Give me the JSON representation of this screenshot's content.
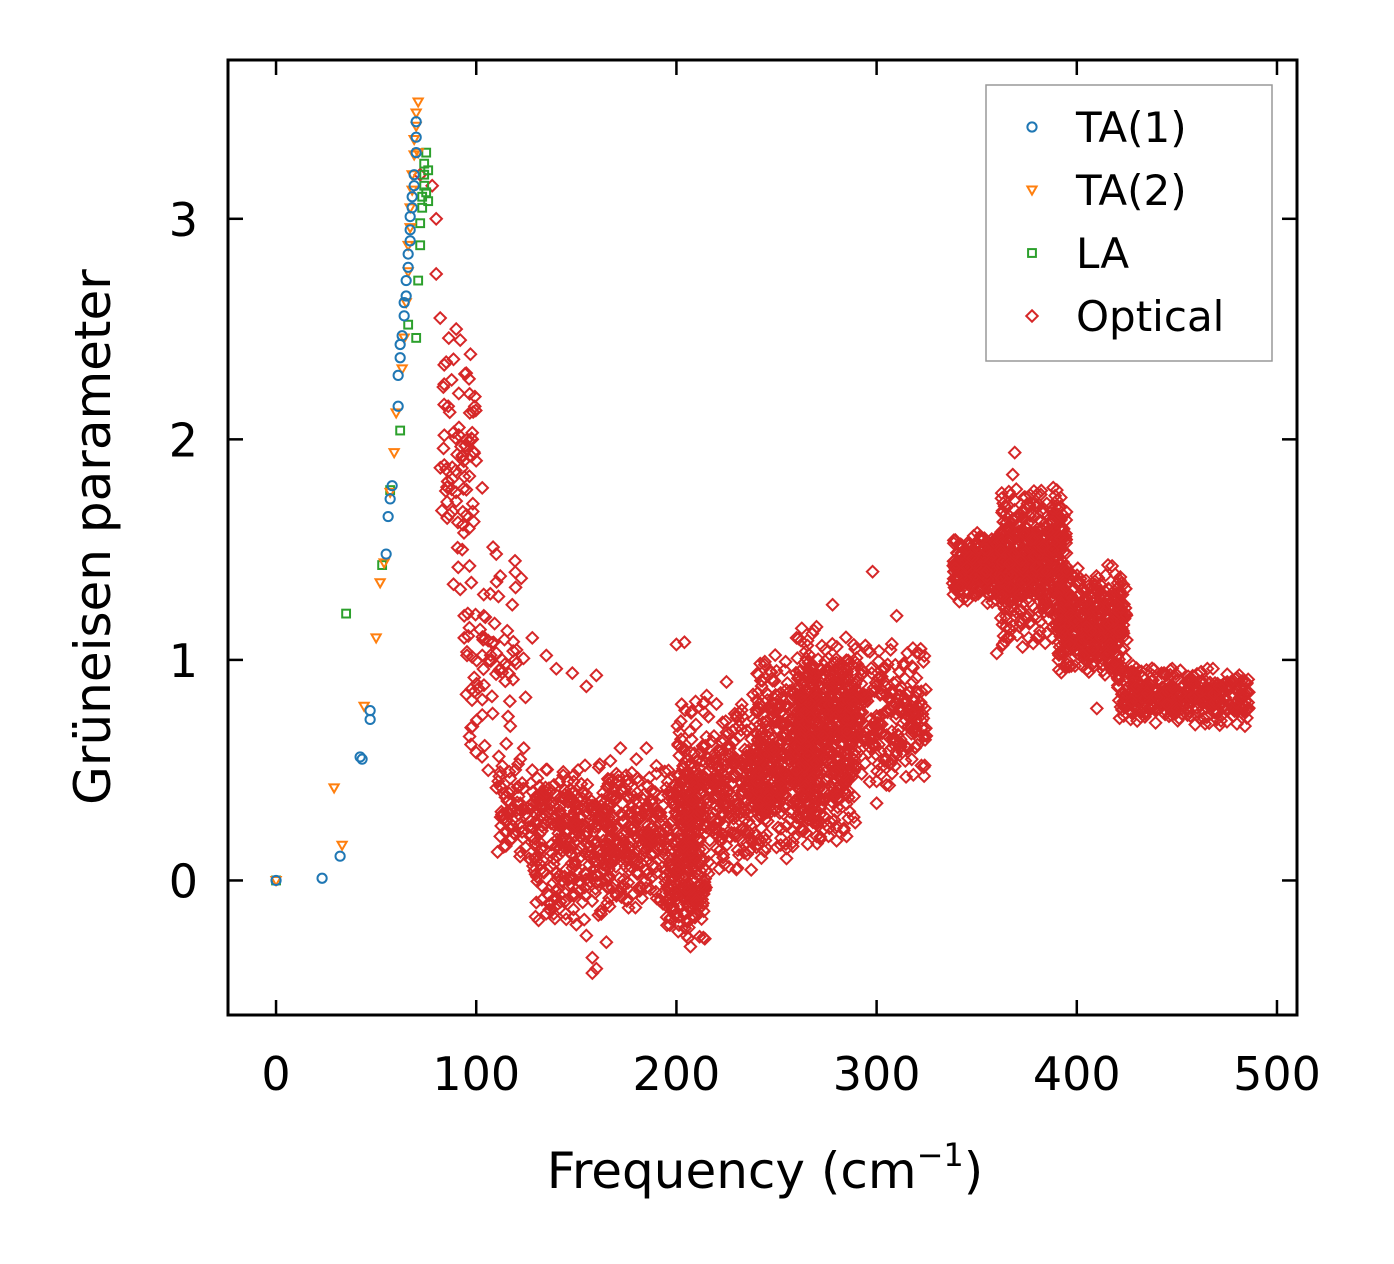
{
  "chart_data": {
    "type": "scatter",
    "title": "",
    "xlabel": "Frequency (cm",
    "xlabel_sup": "−1",
    "xlabel_suffix": ")",
    "ylabel": "Grüneisen parameter",
    "xlim": [
      -24,
      510
    ],
    "ylim": [
      -0.61,
      3.72
    ],
    "xticks": [
      0,
      100,
      200,
      300,
      400,
      500
    ],
    "xtick_labels": [
      "0",
      "100",
      "200",
      "300",
      "400",
      "500"
    ],
    "yticks": [
      0,
      1,
      2,
      3
    ],
    "ytick_labels": [
      "0",
      "1",
      "2",
      "3"
    ],
    "legend_position": "top-right",
    "series": [
      {
        "name": "TA(1)",
        "marker": "circle",
        "color": "#1f77b4",
        "points": [
          [
            0,
            0
          ],
          [
            23,
            0.01
          ],
          [
            32,
            0.11
          ],
          [
            42,
            0.56
          ],
          [
            43,
            0.55
          ],
          [
            47,
            0.77
          ],
          [
            47,
            0.73
          ],
          [
            55,
            1.48
          ],
          [
            56,
            1.65
          ],
          [
            57,
            1.73
          ],
          [
            58,
            1.79
          ],
          [
            61,
            2.15
          ],
          [
            61,
            2.29
          ],
          [
            62,
            2.37
          ],
          [
            62,
            2.43
          ],
          [
            63,
            2.47
          ],
          [
            64,
            2.56
          ],
          [
            64,
            2.62
          ],
          [
            65,
            2.65
          ],
          [
            65,
            2.72
          ],
          [
            66,
            2.78
          ],
          [
            66,
            2.84
          ],
          [
            67,
            2.9
          ],
          [
            67,
            2.95
          ],
          [
            67,
            3.01
          ],
          [
            68,
            3.05
          ],
          [
            68,
            3.1
          ],
          [
            69,
            3.15
          ],
          [
            69,
            3.2
          ],
          [
            70,
            3.3
          ],
          [
            70,
            3.37
          ],
          [
            70,
            3.44
          ]
        ]
      },
      {
        "name": "TA(2)",
        "marker": "triangle-down",
        "color": "#ff7f0e",
        "points": [
          [
            0,
            0
          ],
          [
            29,
            0.42
          ],
          [
            33,
            0.16
          ],
          [
            44,
            0.79
          ],
          [
            50,
            1.1
          ],
          [
            52,
            1.35
          ],
          [
            54,
            1.44
          ],
          [
            57,
            1.76
          ],
          [
            59,
            1.94
          ],
          [
            60,
            2.12
          ],
          [
            63,
            2.32
          ],
          [
            64,
            2.46
          ],
          [
            65,
            2.62
          ],
          [
            66,
            2.76
          ],
          [
            66,
            2.88
          ],
          [
            67,
            2.96
          ],
          [
            67,
            3.05
          ],
          [
            68,
            3.13
          ],
          [
            68,
            3.2
          ],
          [
            69,
            3.29
          ],
          [
            69,
            3.36
          ],
          [
            70,
            3.42
          ],
          [
            70,
            3.48
          ],
          [
            71,
            3.53
          ],
          [
            71,
            3.3
          ]
        ]
      },
      {
        "name": "LA",
        "marker": "square",
        "color": "#2ca02c",
        "points": [
          [
            0,
            0
          ],
          [
            35,
            1.21
          ],
          [
            53,
            1.43
          ],
          [
            57,
            1.77
          ],
          [
            62,
            2.04
          ],
          [
            66,
            2.52
          ],
          [
            70,
            2.46
          ],
          [
            71,
            2.72
          ],
          [
            72,
            2.88
          ],
          [
            72,
            2.98
          ],
          [
            73,
            3.05
          ],
          [
            73,
            3.1
          ],
          [
            74,
            3.15
          ],
          [
            74,
            3.2
          ],
          [
            74,
            3.25
          ],
          [
            75,
            3.3
          ],
          [
            75,
            3.12
          ],
          [
            76,
            3.22
          ],
          [
            76,
            3.08
          ]
        ]
      },
      {
        "name": "Optical",
        "marker": "diamond",
        "color": "#d62728",
        "points": [
          [
            72,
            3.2
          ],
          [
            78,
            3.15
          ],
          [
            80,
            2.75
          ],
          [
            80,
            3.0
          ],
          [
            82,
            2.55
          ],
          [
            85,
            2.35
          ],
          [
            84,
            2.25
          ],
          [
            86,
            2.15
          ],
          [
            90,
            2.5
          ],
          [
            92,
            2.45
          ],
          [
            95,
            2.3
          ],
          [
            88,
            1.82
          ],
          [
            90,
            1.72
          ],
          [
            93,
            1.5
          ],
          [
            91,
            1.42
          ],
          [
            92,
            1.32
          ],
          [
            94,
            1.2
          ],
          [
            94,
            1.1
          ],
          [
            98,
            2.03
          ],
          [
            98,
            2.0
          ],
          [
            103,
            1.78
          ],
          [
            103,
            1.02
          ],
          [
            99,
            0.92
          ],
          [
            103,
            0.82
          ],
          [
            103,
            0.75
          ],
          [
            100,
            0.58
          ],
          [
            110,
            1.48
          ],
          [
            112,
            1.38
          ],
          [
            113,
            1.0
          ],
          [
            118,
            1.25
          ],
          [
            117,
            0.7
          ],
          [
            115,
            0.62
          ],
          [
            111,
            0.45
          ],
          [
            122,
            0.35
          ],
          [
            128,
            1.1
          ],
          [
            135,
            1.02
          ],
          [
            140,
            0.96
          ],
          [
            148,
            0.94
          ],
          [
            155,
            0.88
          ],
          [
            160,
            0.93
          ],
          [
            106,
            0.5
          ],
          [
            112,
            0.2
          ],
          [
            118,
            0.25
          ],
          [
            125,
            0.3
          ],
          [
            130,
            -0.1
          ],
          [
            132,
            0.12
          ],
          [
            135,
            -0.15
          ],
          [
            140,
            -0.05
          ],
          [
            145,
            0.05
          ],
          [
            150,
            -0.2
          ],
          [
            155,
            -0.25
          ],
          [
            158,
            -0.35
          ],
          [
            160,
            -0.4
          ],
          [
            158,
            -0.42
          ],
          [
            165,
            -0.28
          ],
          [
            168,
            0.45
          ],
          [
            172,
            0.6
          ],
          [
            175,
            0.45
          ],
          [
            180,
            0.55
          ],
          [
            185,
            0.6
          ],
          [
            190,
            0.52
          ],
          [
            195,
            0.42
          ],
          [
            200,
            1.07
          ],
          [
            204,
            1.08
          ],
          [
            205,
            -0.25
          ],
          [
            207,
            -0.3
          ],
          [
            210,
            -0.1
          ],
          [
            215,
            0.65
          ],
          [
            220,
            0.8
          ],
          [
            225,
            0.9
          ],
          [
            230,
            0.75
          ],
          [
            235,
            0.68
          ],
          [
            240,
            0.72
          ],
          [
            245,
            0.85
          ],
          [
            250,
            0.95
          ],
          [
            255,
            0.8
          ],
          [
            260,
            1.1
          ],
          [
            265,
            0.92
          ],
          [
            270,
            1.15
          ],
          [
            278,
            1.25
          ],
          [
            283,
            0.95
          ],
          [
            285,
            0.55
          ],
          [
            290,
            0.75
          ],
          [
            296,
            0.68
          ],
          [
            298,
            1.4
          ],
          [
            300,
            0.45
          ],
          [
            302,
            0.85
          ],
          [
            305,
            0.55
          ],
          [
            310,
            1.2
          ],
          [
            315,
            0.75
          ],
          [
            318,
            0.9
          ],
          [
            322,
            1.05
          ],
          [
            300,
            0.35
          ],
          [
            270,
            0.2
          ],
          [
            275,
            0.25
          ],
          [
            280,
            0.18
          ],
          [
            285,
            0.2
          ],
          [
            250,
            0.15
          ],
          [
            255,
            0.1
          ],
          [
            240,
            0.15
          ],
          [
            230,
            0.05
          ],
          [
            220,
            0.1
          ],
          [
            200,
            -0.15
          ],
          [
            195,
            -0.1
          ],
          [
            185,
            0.05
          ],
          [
            178,
            0.1
          ],
          [
            172,
            -0.05
          ],
          [
            165,
            0.0
          ],
          [
            150,
            0.25
          ],
          [
            140,
            0.3
          ],
          [
            135,
            0.4
          ],
          [
            128,
            0.5
          ],
          [
            122,
            0.55
          ],
          [
            145,
            0.18
          ],
          [
            175,
            0.22
          ],
          [
            190,
            0.3
          ],
          [
            210,
            0.38
          ],
          [
            225,
            0.42
          ],
          [
            240,
            0.45
          ],
          [
            260,
            0.5
          ],
          [
            275,
            0.6
          ],
          [
            290,
            0.7
          ],
          [
            310,
            0.9
          ],
          [
            340,
            1.38
          ],
          [
            345,
            1.42
          ],
          [
            348,
            1.46
          ],
          [
            350,
            1.52
          ],
          [
            352,
            1.55
          ],
          [
            355,
            1.4
          ],
          [
            358,
            1.3
          ],
          [
            360,
            1.03
          ],
          [
            362,
            1.5
          ],
          [
            365,
            1.6
          ],
          [
            367,
            1.75
          ],
          [
            368,
            1.84
          ],
          [
            369,
            1.94
          ],
          [
            370,
            1.65
          ],
          [
            372,
            1.45
          ],
          [
            374,
            1.3
          ],
          [
            375,
            1.2
          ],
          [
            376,
            1.1
          ],
          [
            378,
            1.55
          ],
          [
            380,
            1.7
          ],
          [
            382,
            1.75
          ],
          [
            385,
            1.6
          ],
          [
            388,
            1.5
          ],
          [
            390,
            1.77
          ],
          [
            392,
            1.55
          ],
          [
            395,
            1.4
          ],
          [
            398,
            1.28
          ],
          [
            400,
            1.35
          ],
          [
            402,
            1.2
          ],
          [
            405,
            1.15
          ],
          [
            408,
            1.05
          ],
          [
            410,
            0.78
          ],
          [
            412,
            1.1
          ],
          [
            415,
            1.02
          ],
          [
            418,
            0.98
          ],
          [
            420,
            1.25
          ],
          [
            422,
            0.95
          ],
          [
            425,
            0.92
          ],
          [
            428,
            0.9
          ],
          [
            430,
            0.88
          ],
          [
            435,
            0.85
          ],
          [
            440,
            0.83
          ],
          [
            445,
            0.8
          ],
          [
            450,
            0.78
          ],
          [
            455,
            0.77
          ],
          [
            460,
            0.75
          ],
          [
            465,
            0.74
          ],
          [
            470,
            0.73
          ],
          [
            475,
            0.72
          ],
          [
            480,
            0.71
          ],
          [
            484,
            0.7
          ]
        ]
      }
    ],
    "cloud_bands": [
      {
        "x": [
          82,
          100
        ],
        "y": [
          1.3,
          2.5
        ],
        "n": 70
      },
      {
        "x": [
          95,
          125
        ],
        "y": [
          0.5,
          1.6
        ],
        "n": 70
      },
      {
        "x": [
          110,
          170
        ],
        "y": [
          0.05,
          0.55
        ],
        "n": 260
      },
      {
        "x": [
          128,
          168
        ],
        "y": [
          -0.25,
          0.3
        ],
        "n": 140
      },
      {
        "x": [
          165,
          210
        ],
        "y": [
          -0.15,
          0.55
        ],
        "n": 320
      },
      {
        "x": [
          195,
          215
        ],
        "y": [
          -0.32,
          0.2
        ],
        "n": 120
      },
      {
        "x": [
          200,
          245
        ],
        "y": [
          0.0,
          0.85
        ],
        "n": 420
      },
      {
        "x": [
          240,
          270
        ],
        "y": [
          0.1,
          1.05
        ],
        "n": 380
      },
      {
        "x": [
          260,
          290
        ],
        "y": [
          0.15,
          1.2
        ],
        "n": 460
      },
      {
        "x": [
          285,
          325
        ],
        "y": [
          0.4,
          1.1
        ],
        "n": 260
      },
      {
        "x": [
          338,
          365
        ],
        "y": [
          1.25,
          1.6
        ],
        "n": 300
      },
      {
        "x": [
          362,
          395
        ],
        "y": [
          1.05,
          1.8
        ],
        "n": 560
      },
      {
        "x": [
          390,
          425
        ],
        "y": [
          0.9,
          1.45
        ],
        "n": 420
      },
      {
        "x": [
          420,
          486
        ],
        "y": [
          0.7,
          0.98
        ],
        "n": 360
      }
    ]
  }
}
